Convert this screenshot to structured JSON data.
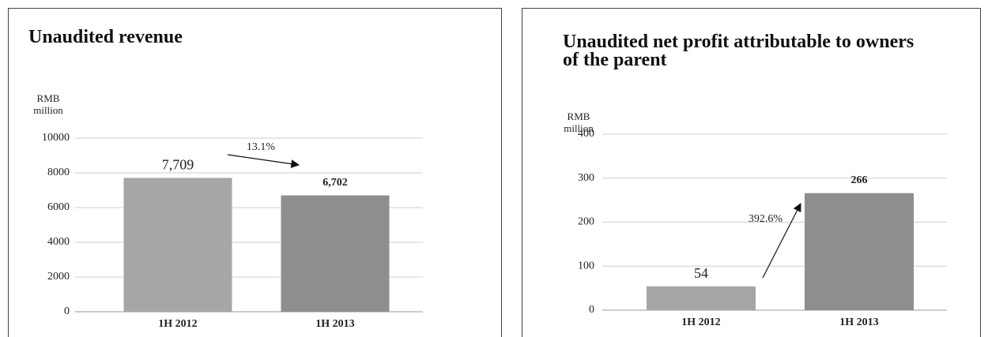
{
  "chart_data": [
    {
      "type": "bar",
      "title": "Unaudited revenue",
      "ylabel": "RMB million",
      "categories": [
        "1H 2012",
        "1H 2013"
      ],
      "values": [
        7709,
        6702
      ],
      "value_labels": [
        "7,709",
        "6,702"
      ],
      "colors": [
        "#a6a6a6",
        "#8e8e8e"
      ],
      "ylim": [
        0,
        10000
      ],
      "yticks": [
        0,
        2000,
        4000,
        6000,
        8000,
        10000
      ],
      "grid": true,
      "annotation": "13.1%"
    },
    {
      "type": "bar",
      "title": "Unaudited net profit attributable to owners of the parent",
      "ylabel": "RMB million",
      "categories": [
        "1H 2012",
        "1H 2013"
      ],
      "values": [
        54,
        266
      ],
      "value_labels": [
        "54",
        "266"
      ],
      "colors": [
        "#a6a6a6",
        "#8e8e8e"
      ],
      "ylim": [
        0,
        400
      ],
      "yticks": [
        0,
        100,
        200,
        300,
        400
      ],
      "grid": true,
      "annotation": "392.6%"
    }
  ]
}
